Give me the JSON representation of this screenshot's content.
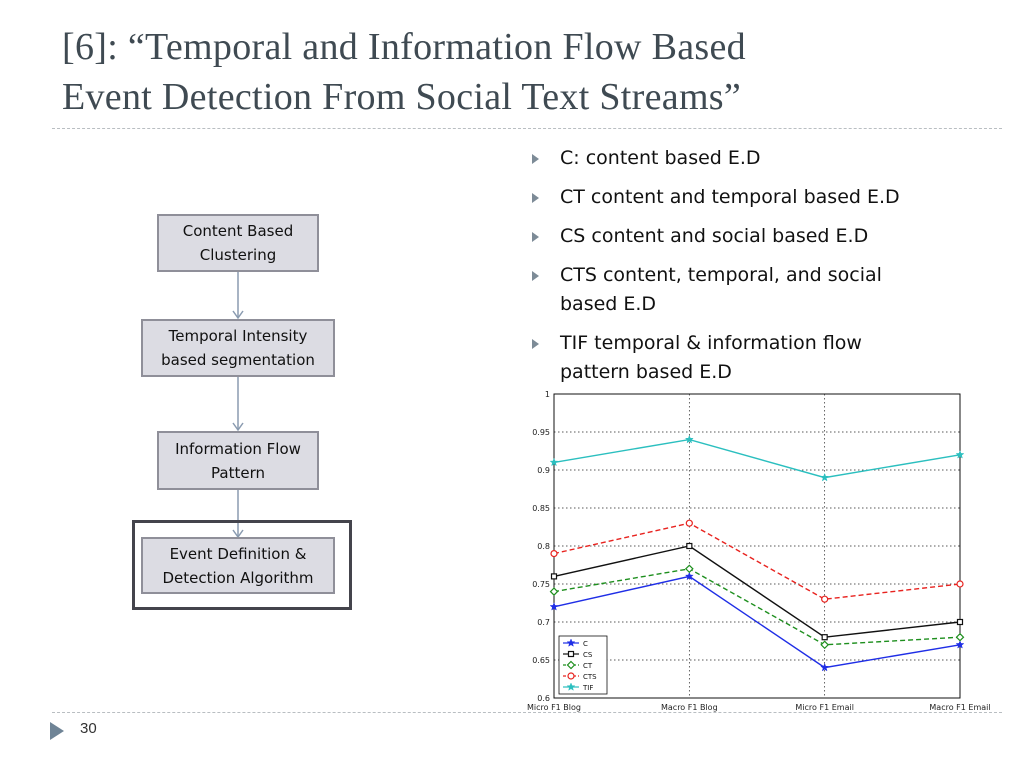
{
  "slide": {
    "title_line1": "[6]: “Temporal and Information Flow Based",
    "title_line2": "Event Detection From Social Text Streams”",
    "page_number": "30"
  },
  "flowchart": {
    "steps": [
      {
        "line1": "Content Based",
        "line2": "Clustering"
      },
      {
        "line1": "Temporal Intensity",
        "line2": "based segmentation"
      },
      {
        "line1": "Information Flow",
        "line2": "Pattern"
      },
      {
        "line1": "Event Definition &",
        "line2": "Detection Algorithm"
      }
    ]
  },
  "bullets": [
    {
      "line1": "C: content based E.D",
      "line2": ""
    },
    {
      "line1": "CT content and temporal based E.D",
      "line2": ""
    },
    {
      "line1": "CS content and social based E.D",
      "line2": ""
    },
    {
      "line1": "CTS content, temporal, and social",
      "line2": "based E.D"
    },
    {
      "line1": "TIF temporal & information flow",
      "line2": "pattern based E.D"
    }
  ],
  "chart_data": {
    "type": "line",
    "categories": [
      "Micro F1 Blog",
      "Macro F1 Blog",
      "Micro F1 Email",
      "Macro F1 Email"
    ],
    "ylim": [
      0.6,
      1.0
    ],
    "yticks": [
      "0.6",
      "0.65",
      "0.7",
      "0.75",
      "0.8",
      "0.85",
      "0.9",
      "0.95",
      "1"
    ],
    "grid": true,
    "legend_position": "bottom-left",
    "series": [
      {
        "name": "C",
        "values": [
          0.72,
          0.76,
          0.64,
          0.67
        ],
        "color": "#1f2ee6",
        "dash": "solid",
        "marker": "star"
      },
      {
        "name": "CS",
        "values": [
          0.76,
          0.8,
          0.68,
          0.7
        ],
        "color": "#111111",
        "dash": "solid",
        "marker": "square"
      },
      {
        "name": "CT",
        "values": [
          0.74,
          0.77,
          0.67,
          0.68
        ],
        "color": "#1e8f1e",
        "dash": "dashed",
        "marker": "diamond"
      },
      {
        "name": "CTS",
        "values": [
          0.79,
          0.83,
          0.73,
          0.75
        ],
        "color": "#e8231f",
        "dash": "dashed",
        "marker": "circle"
      },
      {
        "name": "TIF",
        "values": [
          0.91,
          0.94,
          0.89,
          0.92
        ],
        "color": "#2bbfbf",
        "dash": "solid",
        "marker": "star"
      }
    ]
  }
}
